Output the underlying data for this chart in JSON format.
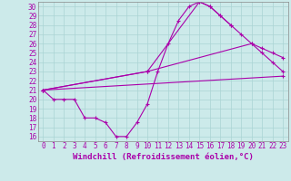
{
  "xlabel": "Windchill (Refroidissement éolien,°C)",
  "xlim": [
    -0.5,
    23.5
  ],
  "ylim": [
    15.5,
    30.5
  ],
  "xticks": [
    0,
    1,
    2,
    3,
    4,
    5,
    6,
    7,
    8,
    9,
    10,
    11,
    12,
    13,
    14,
    15,
    16,
    17,
    18,
    19,
    20,
    21,
    22,
    23
  ],
  "yticks": [
    16,
    17,
    18,
    19,
    20,
    21,
    22,
    23,
    24,
    25,
    26,
    27,
    28,
    29,
    30
  ],
  "bg_color": "#cceaea",
  "grid_color": "#aad4d4",
  "line_color": "#aa00aa",
  "series": [
    {
      "x": [
        0,
        1,
        2,
        3,
        4,
        5,
        6,
        7,
        8,
        9,
        10,
        11,
        12,
        13,
        14,
        15,
        16,
        17,
        18,
        19,
        20,
        21,
        22,
        23
      ],
      "y": [
        21,
        20,
        20,
        20,
        18,
        18,
        17.5,
        16,
        16,
        17.5,
        19.5,
        23,
        26,
        28.5,
        30,
        30.5,
        30,
        29,
        28,
        27,
        26,
        25,
        24,
        23
      ]
    },
    {
      "x": [
        0,
        23
      ],
      "y": [
        21,
        22.5
      ]
    },
    {
      "comment": "line from 0,21 through 10,23 to 20,26 to 23,24.5",
      "x": [
        0,
        10,
        20,
        21,
        22,
        23
      ],
      "y": [
        21,
        23,
        26,
        25.5,
        25,
        24.5
      ]
    },
    {
      "x": [
        0,
        10,
        15,
        16,
        17,
        18
      ],
      "y": [
        21,
        23,
        30.5,
        30,
        29,
        28
      ]
    }
  ],
  "tick_fontsize": 5.5,
  "label_fontsize": 6.5
}
